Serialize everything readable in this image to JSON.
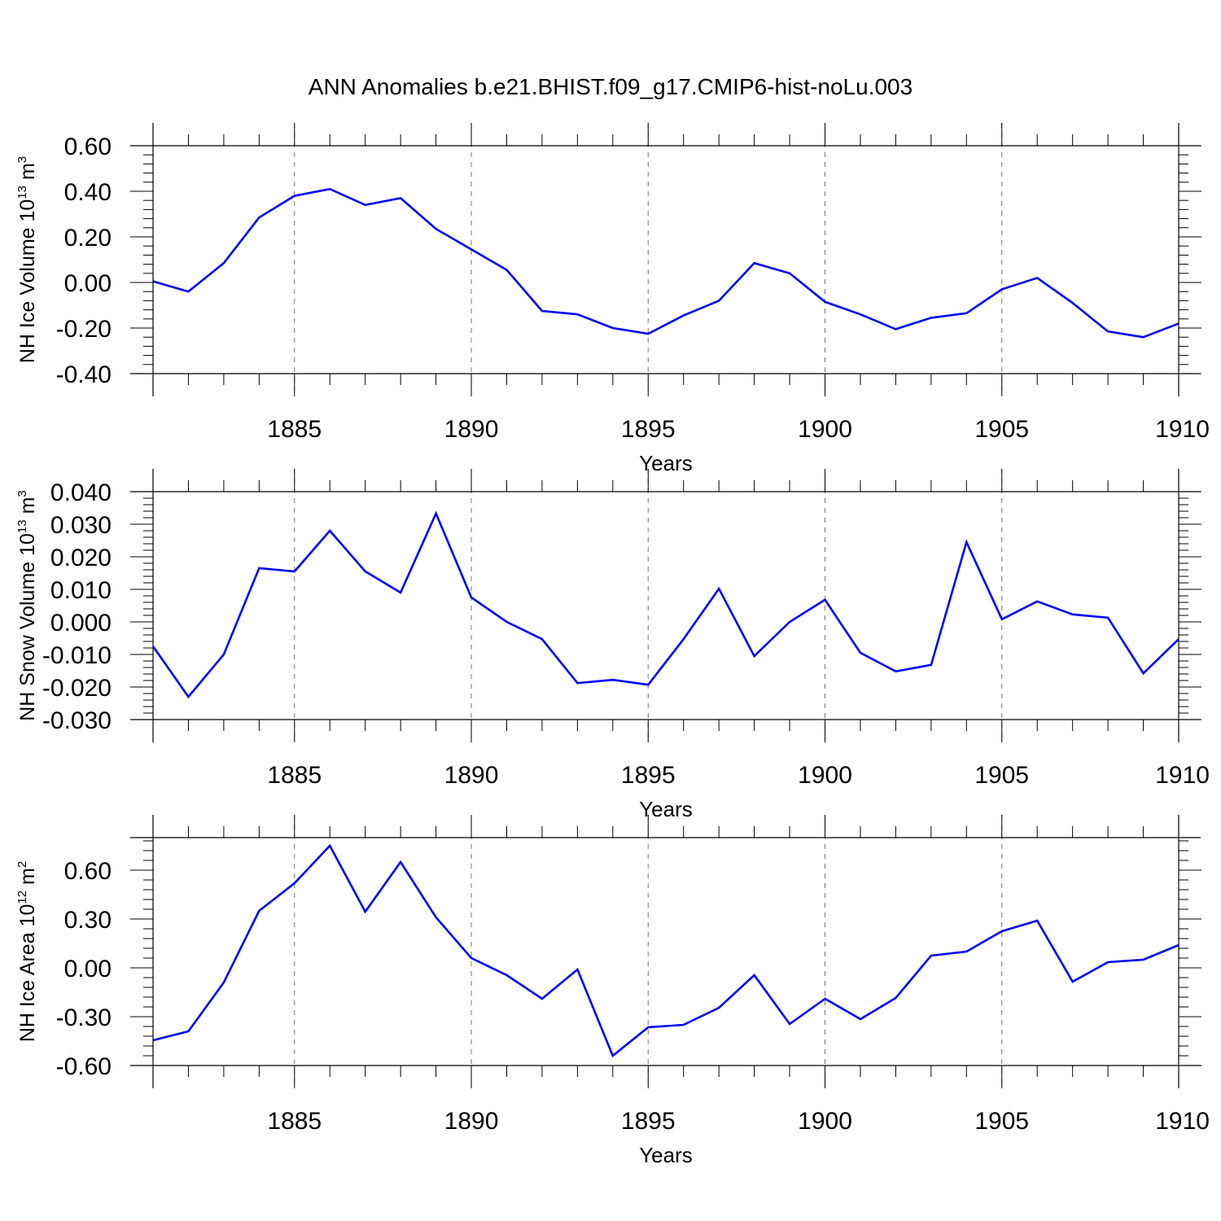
{
  "title": "ANN Anomalies b.e21.BHIST.f09_g17.CMIP6-hist-noLu.003",
  "colors": {
    "line": "#0000ff",
    "axis": "#000000",
    "grid": "#777777"
  },
  "chart_data": [
    {
      "type": "line",
      "ylabel": {
        "base": "NH Ice Volume 10",
        "exp": "13",
        "unit": " m",
        "unit_exp": "3"
      },
      "xlabel": "Years",
      "xlim": [
        1881,
        1910
      ],
      "ylim": [
        -0.4,
        0.6
      ],
      "yticks": [
        "0.60",
        "0.40",
        "0.20",
        "0.00",
        "-0.20",
        "-0.40"
      ],
      "ytick_values": [
        0.6,
        0.4,
        0.2,
        0.0,
        -0.2,
        -0.4
      ],
      "xticks": [
        "1885",
        "1890",
        "1895",
        "1900",
        "1905",
        "1910"
      ],
      "xtick_values": [
        1885,
        1890,
        1895,
        1900,
        1905,
        1910
      ],
      "x": [
        1881,
        1882,
        1883,
        1884,
        1885,
        1886,
        1887,
        1888,
        1889,
        1890,
        1891,
        1892,
        1893,
        1894,
        1895,
        1896,
        1897,
        1898,
        1899,
        1900,
        1901,
        1902,
        1903,
        1904,
        1905,
        1906,
        1907,
        1908,
        1909,
        1910
      ],
      "values": [
        0.005,
        -0.04,
        0.085,
        0.285,
        0.38,
        0.41,
        0.34,
        0.37,
        0.235,
        0.145,
        0.055,
        -0.125,
        -0.14,
        -0.2,
        -0.225,
        -0.145,
        -0.08,
        0.085,
        0.04,
        -0.085,
        -0.14,
        -0.205,
        -0.155,
        -0.135,
        -0.03,
        0.02,
        -0.09,
        -0.215,
        -0.24,
        -0.18
      ]
    },
    {
      "type": "line",
      "ylabel": {
        "base": "NH Snow Volume 10",
        "exp": "13",
        "unit": " m",
        "unit_exp": "3"
      },
      "xlabel": "Years",
      "xlim": [
        1881,
        1910
      ],
      "ylim": [
        -0.03,
        0.04
      ],
      "yticks": [
        "0.040",
        "0.030",
        "0.020",
        "0.010",
        "0.000",
        "-0.010",
        "-0.020",
        "-0.030"
      ],
      "ytick_values": [
        0.04,
        0.03,
        0.02,
        0.01,
        0.0,
        -0.01,
        -0.02,
        -0.03
      ],
      "xticks": [
        "1885",
        "1890",
        "1895",
        "1900",
        "1905",
        "1910"
      ],
      "xtick_values": [
        1885,
        1890,
        1895,
        1900,
        1905,
        1910
      ],
      "x": [
        1881,
        1882,
        1883,
        1884,
        1885,
        1886,
        1887,
        1888,
        1889,
        1890,
        1891,
        1892,
        1893,
        1894,
        1895,
        1896,
        1897,
        1898,
        1899,
        1900,
        1901,
        1902,
        1903,
        1904,
        1905,
        1906,
        1907,
        1908,
        1909,
        1910
      ],
      "values": [
        -0.0075,
        -0.023,
        -0.01,
        0.0165,
        0.0155,
        0.028,
        0.0155,
        0.009,
        0.0333,
        0.0075,
        0.0,
        -0.0053,
        -0.0188,
        -0.0178,
        -0.0193,
        -0.0053,
        0.0102,
        -0.0105,
        0.0,
        0.0068,
        -0.0095,
        -0.0152,
        -0.0132,
        0.0245,
        0.0008,
        0.0063,
        0.0023,
        0.0013,
        -0.0158,
        -0.0053
      ]
    },
    {
      "type": "line",
      "ylabel": {
        "base": "NH Ice Area 10",
        "exp": "12",
        "unit": " m",
        "unit_exp": "2"
      },
      "xlabel": "Years",
      "xlim": [
        1881,
        1910
      ],
      "ylim": [
        -0.6,
        0.8
      ],
      "yticks": [
        "0.60",
        "0.30",
        "0.00",
        "-0.30",
        "-0.60"
      ],
      "ytick_values": [
        0.6,
        0.3,
        0.0,
        -0.3,
        -0.6
      ],
      "xticks": [
        "1885",
        "1890",
        "1895",
        "1900",
        "1905",
        "1910"
      ],
      "xtick_values": [
        1885,
        1890,
        1895,
        1900,
        1905,
        1910
      ],
      "x": [
        1881,
        1882,
        1883,
        1884,
        1885,
        1886,
        1887,
        1888,
        1889,
        1890,
        1891,
        1892,
        1893,
        1894,
        1895,
        1896,
        1897,
        1898,
        1899,
        1900,
        1901,
        1902,
        1903,
        1904,
        1905,
        1906,
        1907,
        1908,
        1909,
        1910
      ],
      "values": [
        -0.445,
        -0.39,
        -0.09,
        0.35,
        0.52,
        0.75,
        0.345,
        0.65,
        0.31,
        0.06,
        -0.045,
        -0.19,
        -0.01,
        -0.54,
        -0.365,
        -0.35,
        -0.245,
        -0.045,
        -0.345,
        -0.19,
        -0.315,
        -0.185,
        0.075,
        0.1,
        0.225,
        0.29,
        -0.085,
        0.035,
        0.05,
        0.14
      ]
    }
  ]
}
